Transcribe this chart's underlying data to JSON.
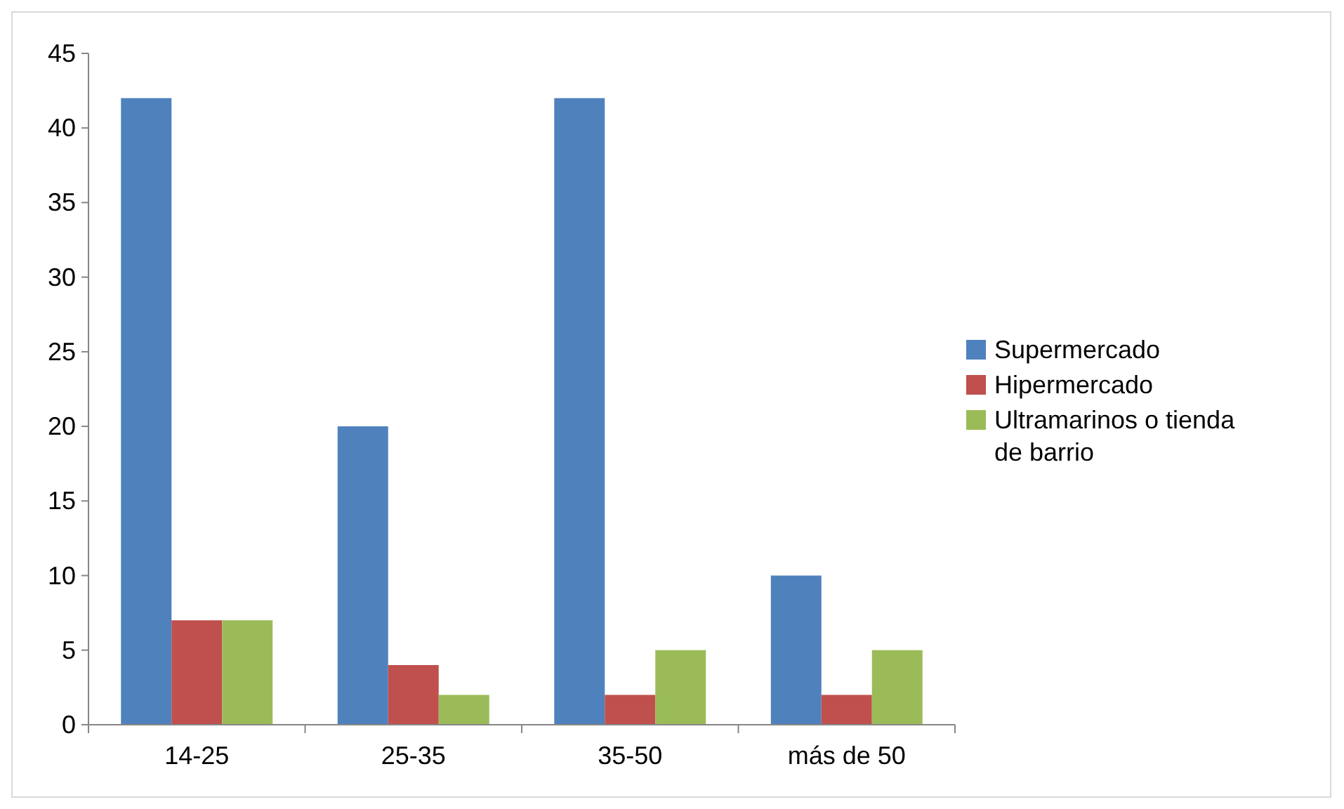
{
  "chart_data": {
    "type": "bar",
    "categories": [
      "14-25",
      "25-35",
      "35-50",
      "más de 50"
    ],
    "series": [
      {
        "name": "Supermercado",
        "color": "#4f81bd",
        "values": [
          42,
          20,
          42,
          10
        ]
      },
      {
        "name": "Hipermercado",
        "color": "#c0504d",
        "values": [
          7,
          4,
          2,
          2
        ]
      },
      {
        "name": "Ultramarinos o tienda de barrio",
        "color": "#9bbb59",
        "values": [
          7,
          2,
          5,
          5
        ]
      }
    ],
    "ylim": [
      0,
      45
    ],
    "yticks": [
      0,
      5,
      10,
      15,
      20,
      25,
      30,
      35,
      40,
      45
    ],
    "grid": false,
    "legend": "right"
  }
}
